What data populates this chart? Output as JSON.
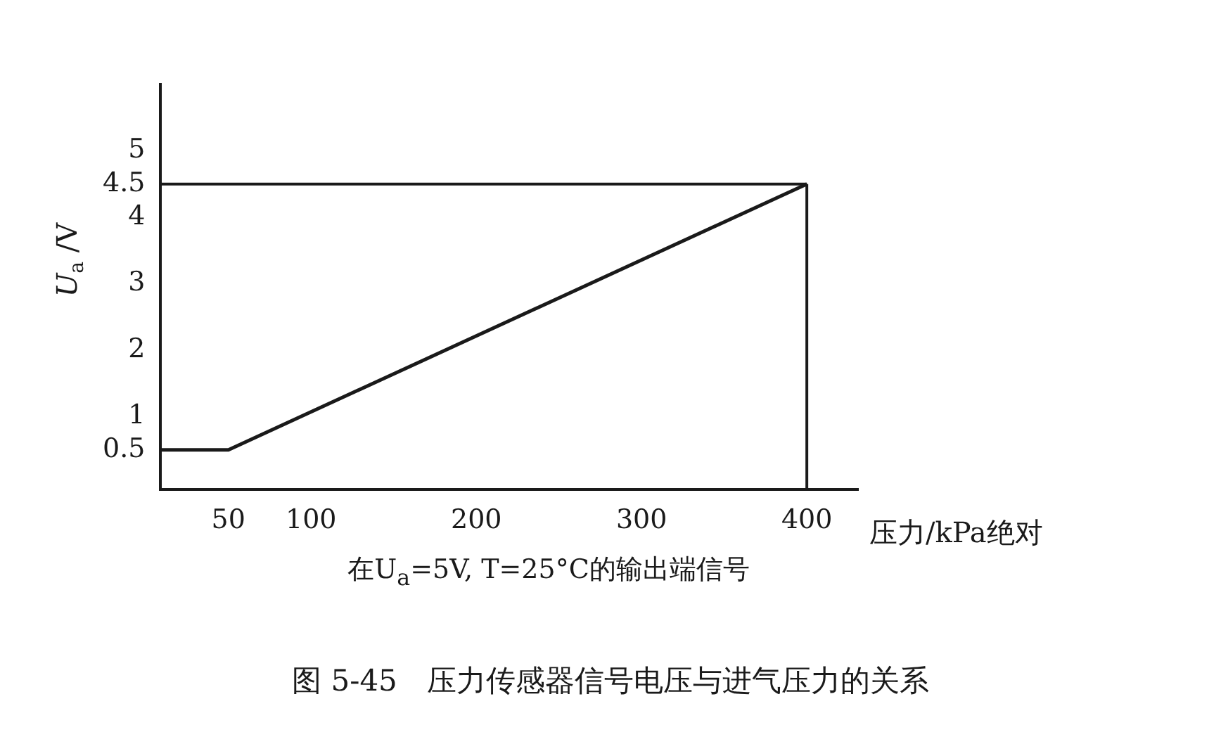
{
  "chart_data": {
    "type": "line",
    "title": "图 5-45　压力传感器信号电压与进气压力的关系",
    "xlabel": "压力/kPa绝对",
    "ylabel": "U$_{a}$ /V",
    "annotations": [
      "在U$_{a}$=5V, T=25°C的输出端信号"
    ],
    "series": [
      {
        "color": "#1a1a1a",
        "x": [
          9,
          50,
          400
        ],
        "values": [
          0.5,
          0.5,
          4.5
        ]
      }
    ],
    "xlim": [
      9,
      431
    ],
    "xticks": [
      50,
      100,
      200,
      300,
      400
    ],
    "ylim": [
      -0.1,
      6
    ],
    "yticks": [
      0.5,
      1,
      2,
      3,
      4,
      4.5,
      5
    ],
    "ref_lines": [
      {
        "axis": "y",
        "value": 4.5,
        "color": "#1a1a1a"
      },
      {
        "axis": "x",
        "value": 400,
        "color": "#1a1a1a"
      }
    ],
    "grid": false,
    "legend": false,
    "marker": "none",
    "line_style": "solid"
  }
}
